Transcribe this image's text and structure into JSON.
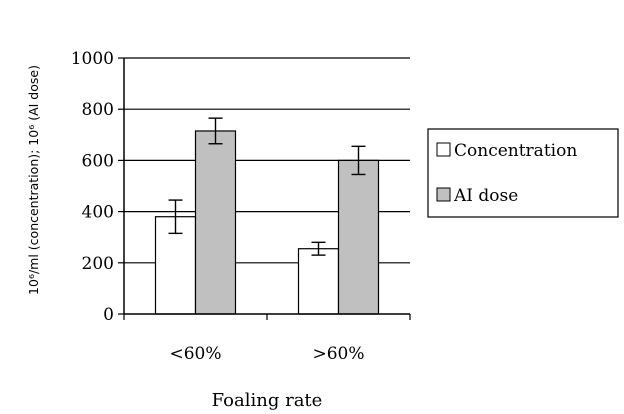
{
  "chart_data": {
    "type": "bar",
    "title": "",
    "xlabel": "Foaling rate",
    "ylabel": "10⁶/ml (concentration); 10⁶ (AI dose)",
    "categories": [
      "<60%",
      ">60%"
    ],
    "series": [
      {
        "name": "Concentration",
        "values": [
          380,
          255
        ],
        "errors": [
          65,
          25
        ],
        "color": "#ffffff"
      },
      {
        "name": "AI dose",
        "values": [
          715,
          600
        ],
        "errors": [
          50,
          55
        ],
        "color": "#c0c0c0"
      }
    ],
    "ylim": [
      0,
      1000
    ],
    "yticks": [
      0,
      200,
      400,
      600,
      800,
      1000
    ],
    "grid": true,
    "legend_position": "right"
  }
}
